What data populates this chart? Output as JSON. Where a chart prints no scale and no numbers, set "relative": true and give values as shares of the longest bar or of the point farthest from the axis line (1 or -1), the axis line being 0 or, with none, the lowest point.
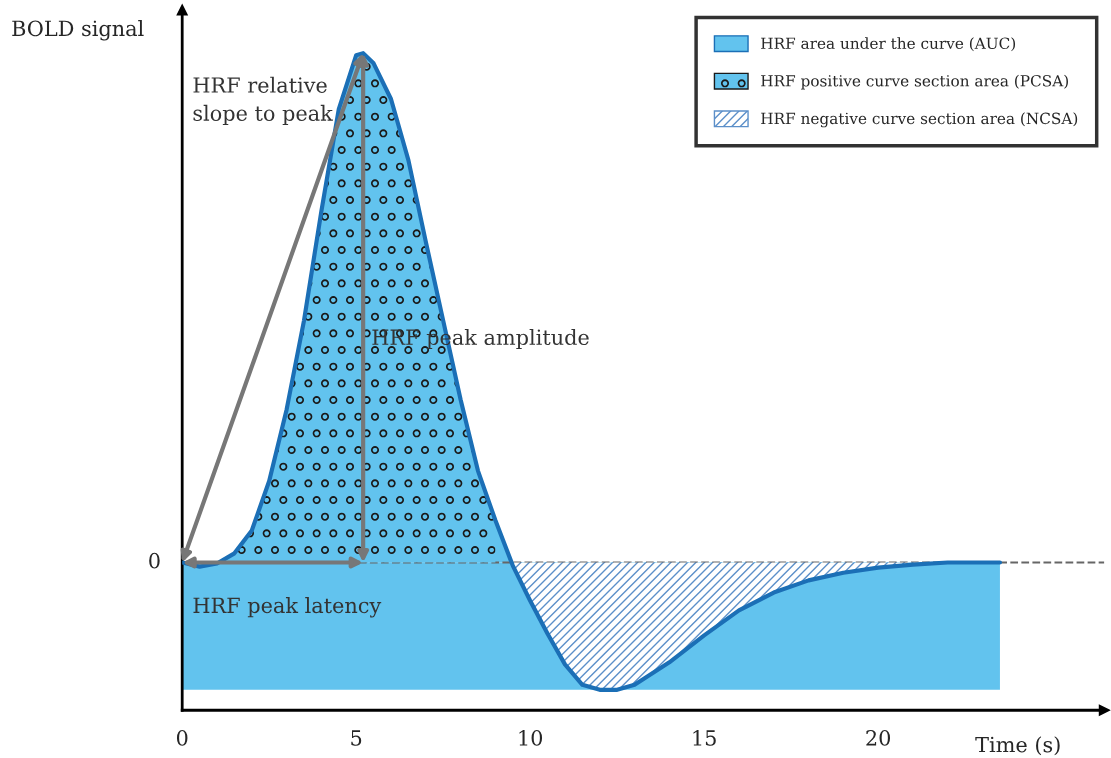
{
  "chart_data": {
    "type": "area",
    "relative": true,
    "xlabel": "Time (s)",
    "ylabel": "BOLD signal",
    "xlim": [
      0,
      26.5
    ],
    "xticks": [
      0,
      5,
      10,
      15,
      20
    ],
    "grid": false,
    "legend": "top right",
    "x": [
      0,
      0.5,
      1,
      1.5,
      2,
      2.5,
      3,
      3.5,
      4,
      4.5,
      5,
      5.2,
      5.5,
      6,
      6.5,
      7,
      7.5,
      8,
      8.5,
      9,
      9.5,
      10,
      10.5,
      11,
      11.5,
      12,
      12.5,
      13,
      14,
      15,
      16,
      17,
      18,
      19,
      20,
      21,
      22,
      23.5
    ],
    "series": [
      {
        "name": "HRF area under the curve (AUC)",
        "color": "#62c3ee",
        "values": [
          0,
          -0.008,
          -0.002,
          0.018,
          0.063,
          0.16,
          0.3,
          0.475,
          0.69,
          0.89,
          0.996,
          1,
          0.98,
          0.91,
          0.79,
          0.63,
          0.475,
          0.32,
          0.18,
          0.083,
          -0.006,
          -0.075,
          -0.14,
          -0.2,
          -0.24,
          -0.25,
          -0.25,
          -0.24,
          -0.196,
          -0.143,
          -0.094,
          -0.059,
          -0.035,
          -0.02,
          -0.01,
          -0.004,
          0,
          0
        ]
      },
      {
        "name": "HRF positive curve section area (PCSA)",
        "type": "area",
        "color": "#62c3ee",
        "values": [
          null,
          null,
          null,
          0.018,
          0.063,
          0.16,
          0.3,
          0.475,
          0.69,
          0.89,
          0.996,
          1,
          0.98,
          0.91,
          0.79,
          0.63,
          0.475,
          0.32,
          0.18,
          0.083,
          null,
          null,
          null,
          null,
          null,
          null,
          null,
          null,
          null,
          null,
          null,
          null,
          null,
          null,
          null,
          null,
          null,
          null
        ]
      },
      {
        "name": "HRF negative curve section area (NCSA)",
        "type": "area",
        "color": "#ffffff",
        "values": [
          null,
          null,
          null,
          null,
          null,
          null,
          null,
          null,
          null,
          null,
          null,
          null,
          null,
          null,
          null,
          null,
          null,
          null,
          null,
          null,
          -0.006,
          -0.075,
          -0.14,
          -0.2,
          -0.24,
          -0.25,
          -0.25,
          -0.24,
          -0.196,
          -0.143,
          -0.094,
          -0.059,
          -0.035,
          -0.02,
          -0.01,
          -0.004,
          0,
          0
        ]
      }
    ],
    "ref_lines": [
      {
        "axis": "y",
        "value": 0,
        "label": "0",
        "color": "#666666",
        "line_style": "dashed"
      }
    ],
    "bands": [
      {
        "axis": "y",
        "from": -0.25,
        "to": 0,
        "color": "#62c3ee"
      }
    ],
    "annotations": [
      "HRF relative\nslope to peak",
      "HRF peak amplitude",
      "HRF peak latency"
    ]
  }
}
